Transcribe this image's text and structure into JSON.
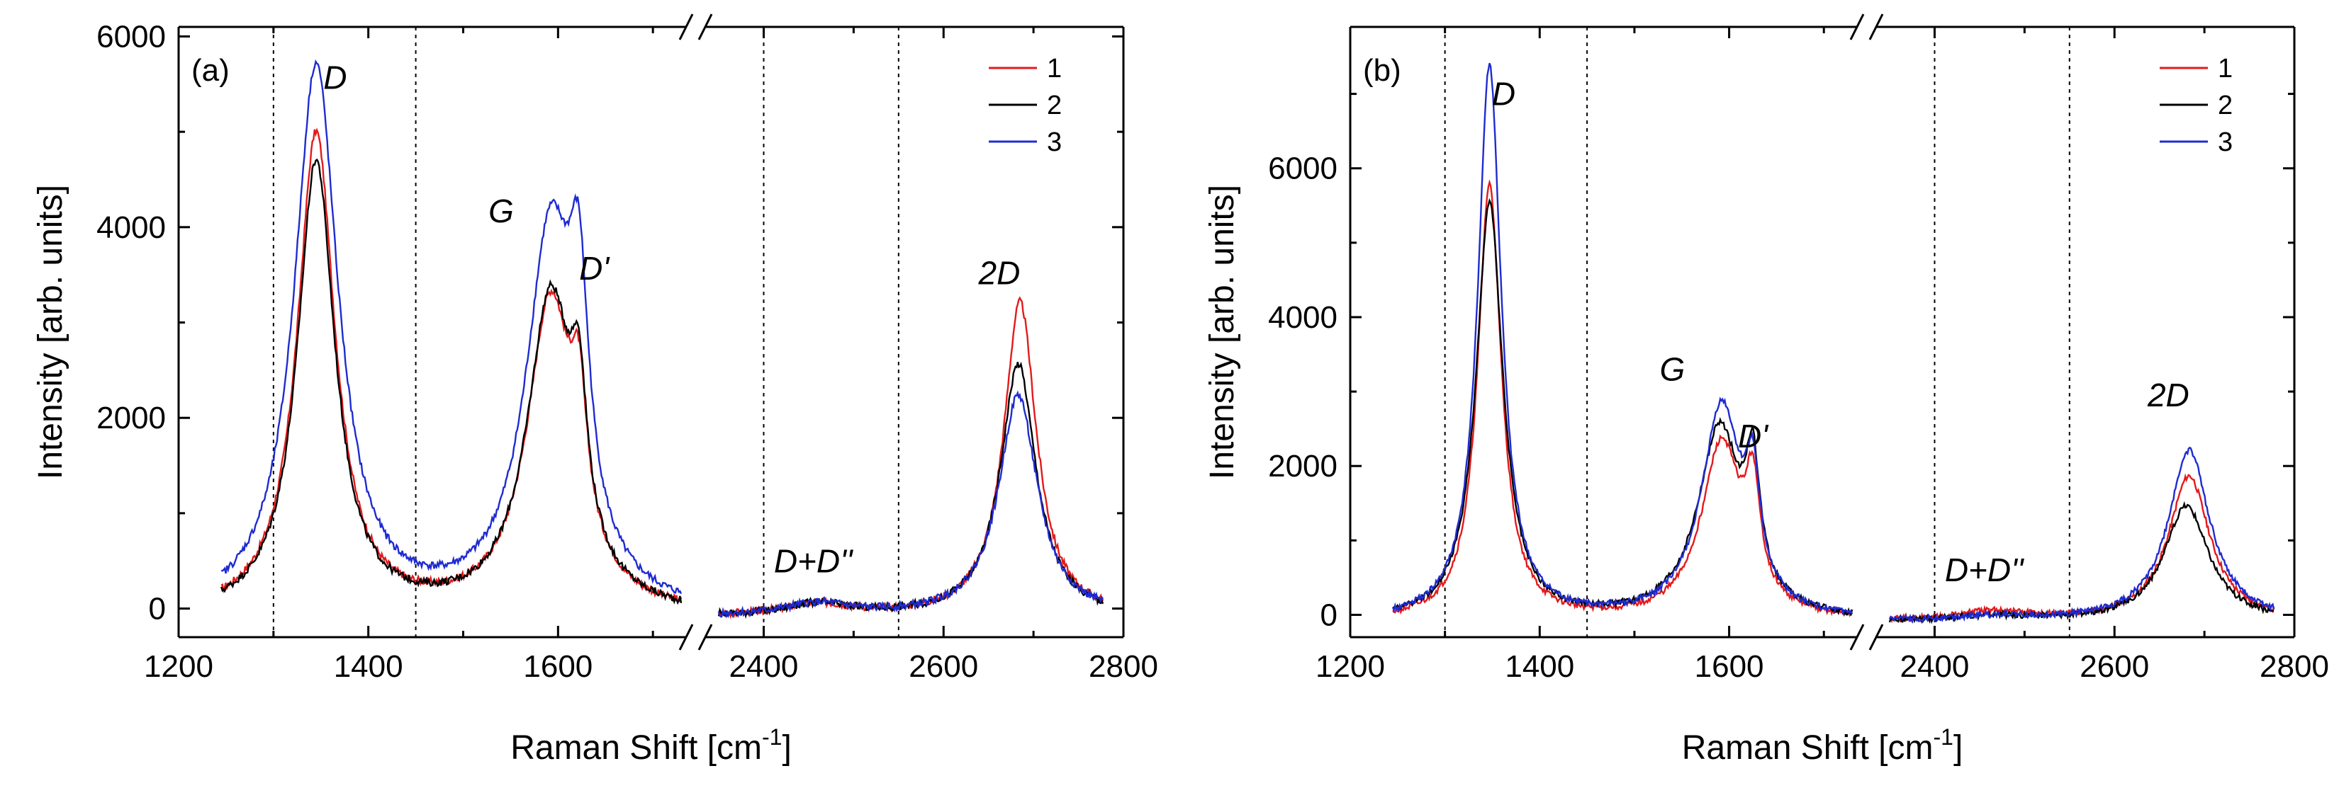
{
  "chart_data": [
    {
      "type": "line",
      "panel_label": "(a)",
      "xlabel_main": "Raman Shift [cm",
      "xlabel_sup": "-1",
      "xlabel_end": "]",
      "ylabel": "Intensity [arb. units]",
      "x_segments": [
        [
          1200,
          1735
        ],
        [
          2335,
          2800
        ]
      ],
      "ylim": [
        -300,
        6100
      ],
      "x_ticks": [
        1200,
        1400,
        1600,
        2400,
        2600,
        2800
      ],
      "x_tick_labels": [
        "1200",
        "1400",
        "1600",
        "2400",
        "2600",
        "2800"
      ],
      "y_ticks": [
        0,
        2000,
        4000,
        6000
      ],
      "y_tick_labels": [
        "0",
        "2000",
        "4000",
        "6000"
      ],
      "y_minor_ticks": [
        1000,
        3000,
        5000
      ],
      "x_minor_ticks": [
        1300,
        1500,
        1700,
        2500,
        2700
      ],
      "vertical_dotted_lines": [
        1300,
        1450,
        2400,
        2550
      ],
      "legend": {
        "position": "top-right",
        "entries": [
          "1",
          "2",
          "3"
        ]
      },
      "annotations": [
        {
          "text": "D",
          "x": 1365,
          "y": 5450
        },
        {
          "text": "G",
          "x": 1540,
          "y": 4050
        },
        {
          "text": "D'",
          "x": 1638,
          "y": 3450
        },
        {
          "text": "2D",
          "x": 2662,
          "y": 3400
        },
        {
          "text": "D+D''",
          "x": 2455,
          "y": 380
        }
      ],
      "series": [
        {
          "name": "1",
          "color": "#e31a1c",
          "baseline": 0,
          "peaks": [
            [
              1345,
              5050,
              24
            ],
            [
              1592,
              3250,
              30
            ],
            [
              1622,
              1250,
              10
            ],
            [
              2460,
              120,
              45
            ],
            [
              2685,
              3300,
              22
            ]
          ]
        },
        {
          "name": "2",
          "color": "#000000",
          "baseline": 0,
          "peaks": [
            [
              1345,
              4750,
              24
            ],
            [
              1592,
              3300,
              30
            ],
            [
              1622,
              1350,
              10
            ],
            [
              2460,
              120,
              45
            ],
            [
              2683,
              2650,
              24
            ]
          ]
        },
        {
          "name": "3",
          "color": "#1f2bd1",
          "baseline": 0,
          "peaks": [
            [
              1345,
              5750,
              28
            ],
            [
              1592,
              3950,
              32
            ],
            [
              1622,
              2150,
              12
            ],
            [
              2460,
              120,
              45
            ],
            [
              2683,
              2320,
              26
            ]
          ]
        }
      ]
    },
    {
      "type": "line",
      "panel_label": "(b)",
      "xlabel_main": "Raman Shift [cm",
      "xlabel_sup": "-1",
      "xlabel_end": "]",
      "ylabel": "Intensity [arb. units]",
      "x_segments": [
        [
          1200,
          1735
        ],
        [
          2335,
          2800
        ]
      ],
      "ylim": [
        -300,
        7900
      ],
      "x_ticks": [
        1200,
        1400,
        1600,
        2400,
        2600,
        2800
      ],
      "x_tick_labels": [
        "1200",
        "1400",
        "1600",
        "2400",
        "2600",
        "2800"
      ],
      "y_ticks": [
        0,
        2000,
        4000,
        6000
      ],
      "y_tick_labels": [
        "0",
        "2000",
        "4000",
        "6000"
      ],
      "y_minor_ticks": [
        1000,
        3000,
        5000,
        7000
      ],
      "x_minor_ticks": [
        1300,
        1500,
        1700,
        2500,
        2700
      ],
      "vertical_dotted_lines": [
        1300,
        1450,
        2400,
        2550
      ],
      "legend": {
        "position": "top-right",
        "entries": [
          "1",
          "2",
          "3"
        ]
      },
      "annotations": [
        {
          "text": "D",
          "x": 1362,
          "y": 6850
        },
        {
          "text": "G",
          "x": 1540,
          "y": 3150
        },
        {
          "text": "D'",
          "x": 1625,
          "y": 2250
        },
        {
          "text": "2D",
          "x": 2660,
          "y": 2800
        },
        {
          "text": "D+D''",
          "x": 2455,
          "y": 450
        }
      ],
      "series": [
        {
          "name": "1",
          "color": "#e31a1c",
          "baseline": 0,
          "peaks": [
            [
              1347,
              5850,
              15
            ],
            [
              1592,
              2350,
              26
            ],
            [
              1625,
              1350,
              9
            ],
            [
              2465,
              120,
              50
            ],
            [
              2683,
              1950,
              28
            ]
          ]
        },
        {
          "name": "2",
          "color": "#000000",
          "baseline": 0,
          "peaks": [
            [
              1347,
              5600,
              17
            ],
            [
              1590,
              2550,
              28
            ],
            [
              1625,
              1550,
              9
            ],
            [
              2465,
              60,
              50
            ],
            [
              2680,
              1550,
              30
            ]
          ]
        },
        {
          "name": "3",
          "color": "#1f2bd1",
          "baseline": 0,
          "peaks": [
            [
              1347,
              7450,
              15
            ],
            [
              1592,
              2850,
              26
            ],
            [
              1625,
              1350,
              9
            ],
            [
              2465,
              60,
              50
            ],
            [
              2683,
              2300,
              28
            ]
          ]
        }
      ]
    }
  ]
}
